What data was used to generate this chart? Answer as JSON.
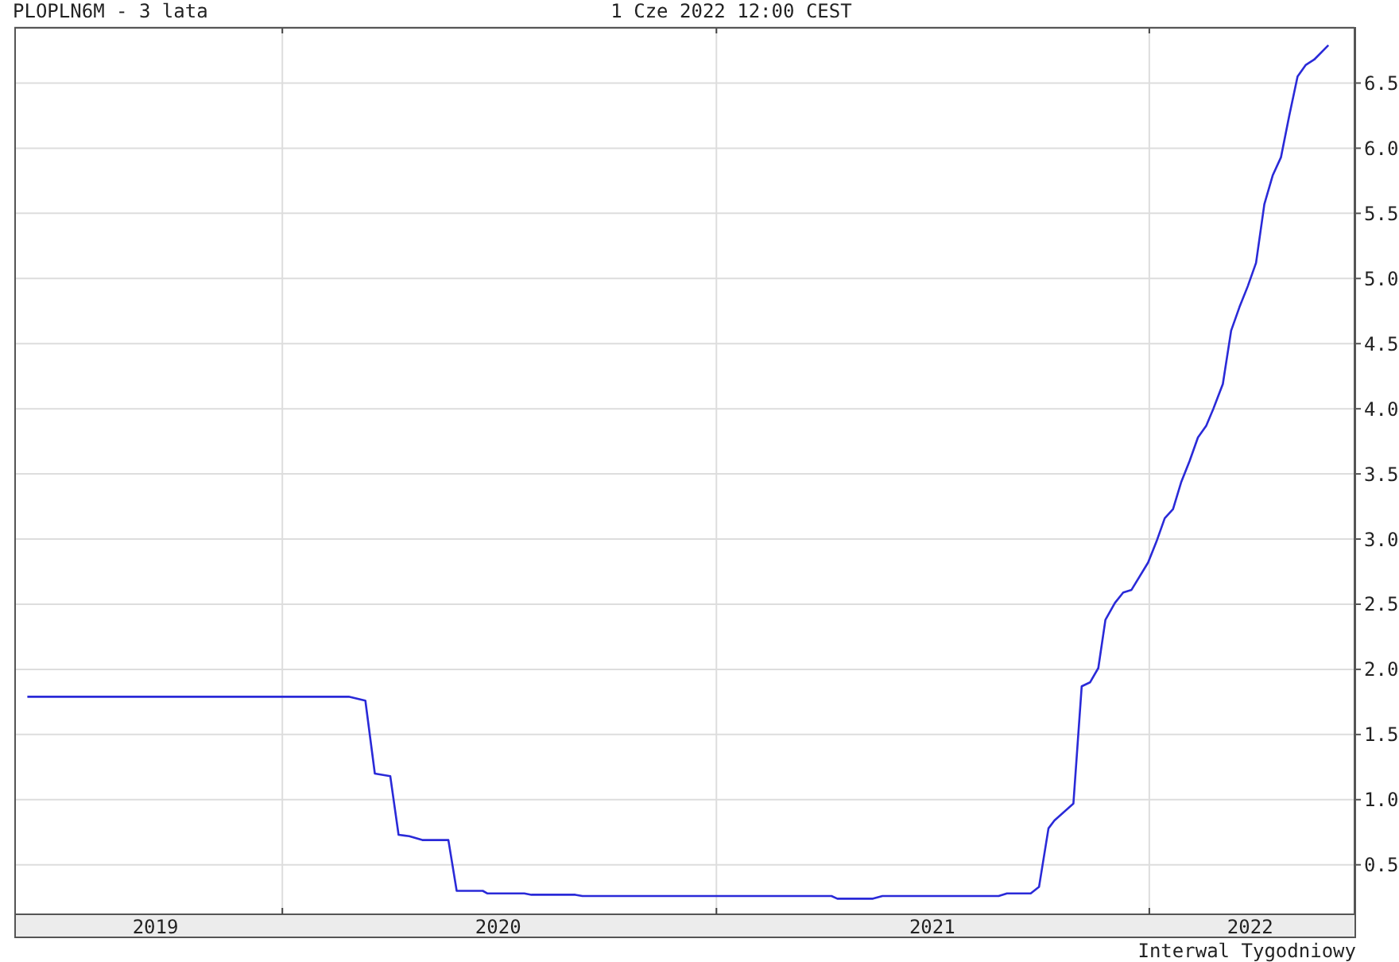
{
  "chart_data": {
    "type": "line",
    "title": "PLOPLN6M - 3 lata",
    "subtitle": "1 Cze 2022 12:00 CEST",
    "annotations": [
      "Interwal Tygodniowy"
    ],
    "x": [
      "2019-05-31",
      "2020-02-26",
      "2020-03-11",
      "2020-03-19",
      "2020-04-01",
      "2020-04-08",
      "2020-04-17",
      "2020-04-28",
      "2020-05-20",
      "2020-05-27",
      "2020-06-18",
      "2020-06-22",
      "2020-07-23",
      "2020-07-29",
      "2020-09-04",
      "2020-09-10",
      "2021-04-08",
      "2021-04-13",
      "2021-05-13",
      "2021-05-21",
      "2021-08-27",
      "2021-09-03",
      "2021-09-23",
      "2021-09-30",
      "2021-10-08",
      "2021-10-13",
      "2021-10-29",
      "2021-11-05",
      "2021-11-12",
      "2021-11-19",
      "2021-11-25",
      "2021-12-03",
      "2021-12-10",
      "2021-12-17",
      "2021-12-31",
      "2022-01-07",
      "2022-01-14",
      "2022-01-21",
      "2022-01-28",
      "2022-02-04",
      "2022-02-11",
      "2022-02-18",
      "2022-02-24",
      "2022-03-04",
      "2022-03-11",
      "2022-03-18",
      "2022-03-25",
      "2022-04-01",
      "2022-04-08",
      "2022-04-15",
      "2022-04-22",
      "2022-04-29",
      "2022-05-06",
      "2022-05-13",
      "2022-05-20",
      "2022-06-01"
    ],
    "values": [
      1.79,
      1.79,
      1.76,
      1.2,
      1.18,
      0.73,
      0.72,
      0.69,
      0.69,
      0.3,
      0.3,
      0.28,
      0.28,
      0.27,
      0.27,
      0.26,
      0.26,
      0.24,
      0.24,
      0.26,
      0.26,
      0.28,
      0.28,
      0.33,
      0.78,
      0.84,
      0.97,
      1.87,
      1.9,
      2.01,
      2.38,
      2.51,
      2.59,
      2.61,
      2.82,
      2.98,
      3.16,
      3.23,
      3.44,
      3.6,
      3.78,
      3.87,
      4.0,
      4.19,
      4.6,
      4.78,
      4.94,
      5.12,
      5.57,
      5.79,
      5.93,
      6.25,
      6.55,
      6.64,
      6.68,
      6.79
    ],
    "color": "#2a2ad8",
    "xlim": [
      "2019-05-20",
      "2022-06-23"
    ],
    "xticks": [
      {
        "value": "2019-09-16",
        "label": "2019"
      },
      {
        "value": "2020-01-01",
        "label": null
      },
      {
        "value": "2020-07-01",
        "label": "2020"
      },
      {
        "value": "2021-01-01",
        "label": null
      },
      {
        "value": "2021-07-02",
        "label": "2021"
      },
      {
        "value": "2022-01-01",
        "label": null
      },
      {
        "value": "2022-03-27",
        "label": "2022"
      }
    ],
    "ylim": [
      0.12,
      6.93
    ],
    "yticks": [
      0.5,
      {
        "value": 1,
        "label": "1.0"
      },
      1.5,
      {
        "value": 2,
        "label": "2.0"
      },
      2.5,
      {
        "value": 3,
        "label": "3.0"
      },
      3.5,
      {
        "value": 4,
        "label": "4.0"
      },
      4.5,
      {
        "value": 5,
        "label": "5.0"
      },
      5.5,
      {
        "value": 6,
        "label": "6.0"
      },
      6.5
    ],
    "grid": true
  }
}
